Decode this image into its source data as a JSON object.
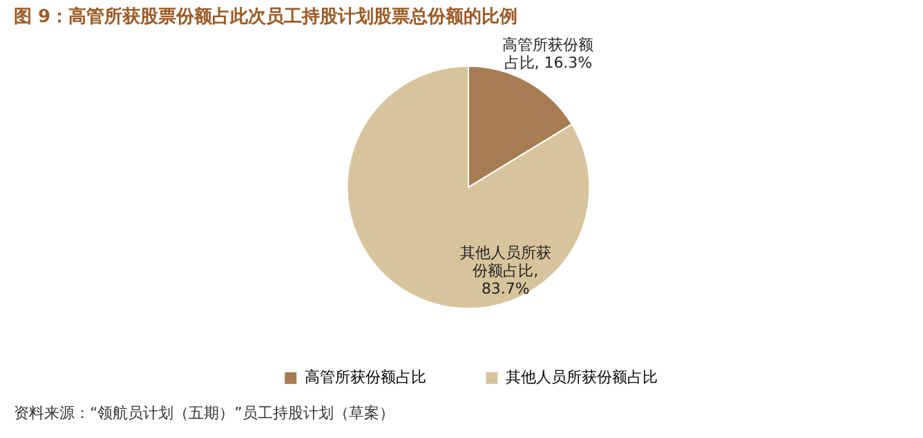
{
  "chart_data": {
    "type": "pie",
    "title": "图 9：高管所获股票份额占此次员工持股计划股票总份额的比例",
    "categories": [
      "高管所获份额占比",
      "其他人员所获份额占比"
    ],
    "values": [
      16.3,
      83.7
    ],
    "colors": [
      "#a67c52",
      "#d8c49c"
    ],
    "value_labels": [
      "高管所获份额占比, 16.3%",
      "其他人员所获份额占比, 83.7%"
    ],
    "legend": "bottom",
    "annotations": [
      "资料来源：“领航员计划（五期）”员工持股计划（草案）"
    ]
  }
}
